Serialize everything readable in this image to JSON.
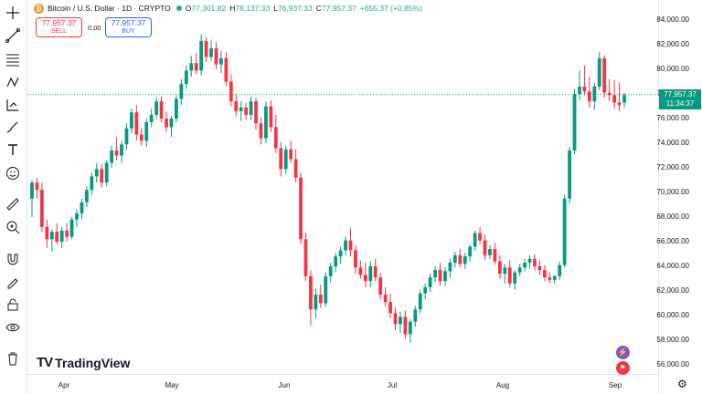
{
  "symbol": {
    "logo_glyph": "₿",
    "title": "Bitcoin / U.S. Dollar · 1D · CRYPTO",
    "open_label": "O",
    "open": "77,301.82",
    "high_label": "H",
    "high": "78,137.33",
    "low_label": "L",
    "low": "76,937.33",
    "close_label": "C",
    "close": "77,957.37",
    "change": "+655.37 (+0.85%)"
  },
  "trade": {
    "sell_price": "77,957.37",
    "sell_label": "SELL",
    "spread": "0.00",
    "buy_price": "77,957.37",
    "buy_label": "BUY"
  },
  "price_badge": {
    "price": "77,957.37",
    "time": "11:34:37"
  },
  "brand": "TradingView",
  "y_axis": [
    "84,000.00",
    "82,000.00",
    "80,000.00",
    "78,000.00",
    "76,000.00",
    "74,000.00",
    "72,000.00",
    "70,000.00",
    "68,000.00",
    "66,000.00",
    "64,000.00",
    "62,000.00",
    "60,000.00",
    "58,000.00",
    "56,000.00"
  ],
  "x_axis": [
    "Apr",
    "May",
    "Jun",
    "Jul",
    "Aug",
    "Sep"
  ],
  "colors": {
    "up": "#089981",
    "down": "#f23645",
    "last_price_line": "#089981"
  },
  "toolbar_icons": [
    "crosshair-icon",
    "trend-line-icon",
    "fib-icon",
    "pattern-icon",
    "projection-icon",
    "brush-icon",
    "text-icon",
    "emoji-icon",
    "ruler-icon",
    "zoom-in-icon",
    "magnet-icon",
    "lock-drawing-icon",
    "lock-icon",
    "eye-icon",
    "trash-icon"
  ],
  "chart_data": {
    "type": "candlestick",
    "x_ticks": [
      "Apr",
      "May",
      "Jun",
      "Jul",
      "Aug",
      "Sep"
    ],
    "ylim": [
      55000,
      85000
    ],
    "y_ticks": [
      56000,
      58000,
      60000,
      62000,
      64000,
      66000,
      68000,
      70000,
      72000,
      74000,
      76000,
      78000,
      80000,
      82000,
      84000
    ],
    "last_price": 77957.37,
    "candles": [
      [
        69500,
        71000,
        68000,
        70800
      ],
      [
        70800,
        71200,
        69500,
        70200
      ],
      [
        70200,
        70800,
        66800,
        67200
      ],
      [
        67200,
        67800,
        65500,
        66200
      ],
      [
        66200,
        67000,
        65200,
        66800
      ],
      [
        66800,
        67500,
        65800,
        66000
      ],
      [
        66000,
        67200,
        65500,
        66900
      ],
      [
        66900,
        67500,
        66000,
        66400
      ],
      [
        66400,
        68000,
        66200,
        67800
      ],
      [
        67800,
        68600,
        67200,
        68300
      ],
      [
        68300,
        69500,
        67800,
        69200
      ],
      [
        69200,
        70500,
        68800,
        70200
      ],
      [
        70200,
        71600,
        69800,
        71300
      ],
      [
        71300,
        72400,
        70800,
        71900
      ],
      [
        71900,
        72300,
        70400,
        70800
      ],
      [
        70800,
        72600,
        70500,
        72400
      ],
      [
        72400,
        73800,
        72000,
        73400
      ],
      [
        73400,
        74500,
        72600,
        73000
      ],
      [
        73000,
        74200,
        72400,
        73900
      ],
      [
        73900,
        75600,
        73500,
        75200
      ],
      [
        75200,
        76800,
        74800,
        76500
      ],
      [
        76500,
        77100,
        74200,
        74700
      ],
      [
        74700,
        75300,
        73800,
        74200
      ],
      [
        74200,
        76000,
        73700,
        75700
      ],
      [
        75700,
        76800,
        75300,
        76300
      ],
      [
        76300,
        77700,
        76000,
        77400
      ],
      [
        77400,
        77800,
        75700,
        76000
      ],
      [
        76000,
        76600,
        74900,
        75300
      ],
      [
        75300,
        76200,
        74500,
        76000
      ],
      [
        76000,
        77900,
        75700,
        77600
      ],
      [
        77600,
        79200,
        77100,
        78800
      ],
      [
        78800,
        80300,
        78400,
        79900
      ],
      [
        79900,
        81100,
        79400,
        80500
      ],
      [
        80500,
        81300,
        79600,
        79900
      ],
      [
        79900,
        82800,
        79500,
        82300
      ],
      [
        82300,
        82600,
        80600,
        81000
      ],
      [
        81000,
        82400,
        80700,
        81700
      ],
      [
        81700,
        82200,
        80000,
        80400
      ],
      [
        80400,
        81500,
        79700,
        80900
      ],
      [
        80900,
        81400,
        78600,
        79000
      ],
      [
        79000,
        79600,
        77000,
        77400
      ],
      [
        77400,
        78000,
        76200,
        76600
      ],
      [
        76600,
        77400,
        75800,
        76900
      ],
      [
        76900,
        77300,
        75900,
        76300
      ],
      [
        76300,
        77800,
        75900,
        77400
      ],
      [
        77400,
        77700,
        75100,
        75600
      ],
      [
        75600,
        76100,
        73900,
        74400
      ],
      [
        74400,
        77400,
        74000,
        77000
      ],
      [
        77000,
        77500,
        74900,
        75300
      ],
      [
        75300,
        76300,
        73200,
        73600
      ],
      [
        73600,
        74100,
        71300,
        71900
      ],
      [
        71900,
        73800,
        71500,
        73500
      ],
      [
        73500,
        74200,
        72400,
        72700
      ],
      [
        72700,
        73500,
        70800,
        71200
      ],
      [
        71200,
        71600,
        65800,
        66200
      ],
      [
        66200,
        66700,
        62800,
        63200
      ],
      [
        63200,
        63700,
        59200,
        60500
      ],
      [
        60500,
        62200,
        59800,
        61700
      ],
      [
        61700,
        62500,
        60600,
        61000
      ],
      [
        61000,
        63500,
        60700,
        63200
      ],
      [
        63200,
        64300,
        62700,
        64000
      ],
      [
        64000,
        65100,
        63500,
        64800
      ],
      [
        64800,
        65600,
        64200,
        65300
      ],
      [
        65300,
        66400,
        64900,
        66100
      ],
      [
        66100,
        67100,
        64800,
        65300
      ],
      [
        65300,
        65700,
        63400,
        63900
      ],
      [
        63900,
        64500,
        63000,
        63300
      ],
      [
        63300,
        64300,
        62300,
        62800
      ],
      [
        62800,
        64400,
        62300,
        64000
      ],
      [
        64000,
        64600,
        62800,
        63100
      ],
      [
        63100,
        63500,
        61300,
        61700
      ],
      [
        61700,
        62300,
        60700,
        61100
      ],
      [
        61100,
        61800,
        59800,
        60200
      ],
      [
        60200,
        60700,
        58800,
        59300
      ],
      [
        59300,
        60300,
        58600,
        59900
      ],
      [
        59900,
        60400,
        58100,
        58500
      ],
      [
        58500,
        59700,
        57800,
        59500
      ],
      [
        59500,
        60800,
        59100,
        60500
      ],
      [
        60500,
        62100,
        60200,
        61800
      ],
      [
        61800,
        62600,
        61300,
        62300
      ],
      [
        62300,
        63400,
        61900,
        63100
      ],
      [
        63100,
        64000,
        62700,
        63700
      ],
      [
        63700,
        64300,
        62400,
        62800
      ],
      [
        62800,
        63900,
        62400,
        63600
      ],
      [
        63600,
        64600,
        63100,
        64300
      ],
      [
        64300,
        65200,
        63900,
        64900
      ],
      [
        64900,
        65400,
        63900,
        64200
      ],
      [
        64200,
        65100,
        63800,
        64800
      ],
      [
        64800,
        65800,
        64400,
        65600
      ],
      [
        65600,
        66900,
        65300,
        66700
      ],
      [
        66700,
        67200,
        65800,
        66100
      ],
      [
        66100,
        66600,
        64500,
        64900
      ],
      [
        64900,
        65700,
        64600,
        65400
      ],
      [
        65400,
        65900,
        64100,
        64400
      ],
      [
        64400,
        64900,
        63000,
        63400
      ],
      [
        63400,
        64200,
        62600,
        63900
      ],
      [
        63900,
        64500,
        62300,
        62600
      ],
      [
        62600,
        63700,
        62100,
        63500
      ],
      [
        63500,
        64200,
        63200,
        63900
      ],
      [
        63900,
        64600,
        63600,
        64300
      ],
      [
        64300,
        64900,
        63800,
        64600
      ],
      [
        64600,
        65000,
        63700,
        64000
      ],
      [
        64000,
        64500,
        63300,
        63700
      ],
      [
        63700,
        64100,
        62800,
        63100
      ],
      [
        63100,
        63500,
        62600,
        62900
      ],
      [
        62900,
        63300,
        62600,
        63200
      ],
      [
        63200,
        64400,
        62900,
        64100
      ],
      [
        64100,
        69800,
        63900,
        69500
      ],
      [
        69500,
        73700,
        69100,
        73400
      ],
      [
        73400,
        78400,
        73100,
        78000
      ],
      [
        78000,
        79900,
        77500,
        78600
      ],
      [
        78600,
        80300,
        77900,
        78200
      ],
      [
        78200,
        79400,
        76900,
        77400
      ],
      [
        77400,
        78900,
        76700,
        78600
      ],
      [
        78600,
        81400,
        78300,
        80900
      ],
      [
        80900,
        81100,
        77700,
        78100
      ],
      [
        78100,
        79200,
        77400,
        77900
      ],
      [
        77900,
        79100,
        76800,
        77300
      ],
      [
        77300,
        78900,
        76600,
        77100
      ],
      [
        77300,
        78100,
        76900,
        77900
      ]
    ]
  }
}
